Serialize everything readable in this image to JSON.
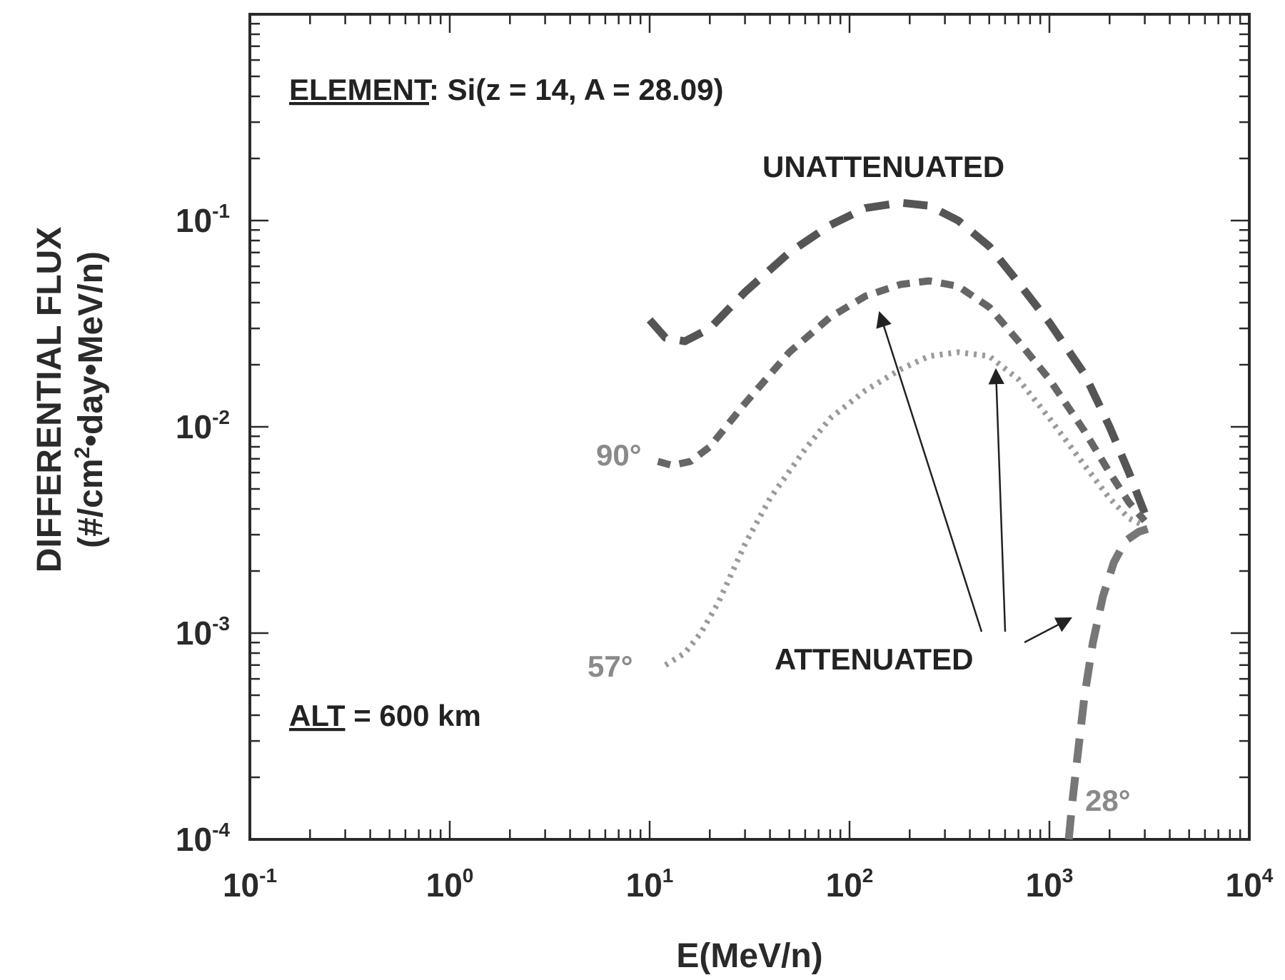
{
  "chart_data": {
    "type": "line",
    "x_scale": "log",
    "y_scale": "log",
    "xlim": [
      0.1,
      10000
    ],
    "ylim": [
      0.0001,
      1
    ],
    "x_ticks": [
      {
        "base": "10",
        "exp": "-1",
        "value": 0.1
      },
      {
        "base": "10",
        "exp": "0",
        "value": 1
      },
      {
        "base": "10",
        "exp": "1",
        "value": 10
      },
      {
        "base": "10",
        "exp": "2",
        "value": 100
      },
      {
        "base": "10",
        "exp": "3",
        "value": 1000
      },
      {
        "base": "10",
        "exp": "4",
        "value": 10000
      }
    ],
    "y_ticks": [
      {
        "base": "10",
        "exp": "-4",
        "value": 0.0001
      },
      {
        "base": "10",
        "exp": "-3",
        "value": 0.001
      },
      {
        "base": "10",
        "exp": "-2",
        "value": 0.01
      },
      {
        "base": "10",
        "exp": "-1",
        "value": 0.1
      }
    ],
    "xlabel": "E(MeV/n)",
    "ylabel_line1": "DIFFERENTIAL FLUX",
    "ylabel_line2_pre": "(#/cm",
    "ylabel_line2_sup": "2",
    "ylabel_line2_post": "•day•MeV/n)",
    "grid": false,
    "annotations": {
      "element_label": "ELEMENT",
      "element_rest": ": Si(z = 14, A = 28.09)",
      "alt_label": "ALT",
      "alt_rest": " = 600 km",
      "unattenuated": "UNATTENUATED",
      "attenuated": "ATTENUATED"
    },
    "series": [
      {
        "label": "UNATTENUATED",
        "color": "#555555",
        "style": "dashed-long",
        "x": [
          10,
          12,
          15,
          20,
          30,
          50,
          80,
          120,
          180,
          250,
          350,
          500,
          700,
          1000,
          1500,
          2000,
          2500,
          3000
        ],
        "y": [
          0.033,
          0.027,
          0.026,
          0.03,
          0.045,
          0.07,
          0.095,
          0.115,
          0.122,
          0.118,
          0.1,
          0.075,
          0.05,
          0.032,
          0.018,
          0.01,
          0.006,
          0.0038
        ]
      },
      {
        "label": "90°",
        "color": "#666666",
        "style": "dashed-short",
        "x": [
          11,
          13,
          16,
          20,
          30,
          50,
          80,
          120,
          180,
          250,
          350,
          500,
          700,
          1000,
          1500,
          2000,
          2500,
          3000
        ],
        "y": [
          0.0068,
          0.0065,
          0.0068,
          0.008,
          0.013,
          0.023,
          0.034,
          0.043,
          0.049,
          0.051,
          0.048,
          0.038,
          0.026,
          0.017,
          0.0095,
          0.006,
          0.0043,
          0.0035
        ]
      },
      {
        "label": "57°",
        "color": "#9a9a9a",
        "style": "dotted",
        "x": [
          12,
          15,
          18,
          22,
          30,
          40,
          60,
          80,
          120,
          180,
          250,
          350,
          500,
          700,
          1000,
          1500,
          2000,
          2500,
          3000
        ],
        "y": [
          0.0007,
          0.0008,
          0.001,
          0.0014,
          0.0027,
          0.0045,
          0.0078,
          0.011,
          0.015,
          0.019,
          0.022,
          0.023,
          0.022,
          0.017,
          0.011,
          0.0065,
          0.0045,
          0.0036,
          0.0033
        ]
      },
      {
        "label": "28°",
        "color": "#777777",
        "style": "dashed-long",
        "x": [
          1250,
          1300,
          1380,
          1500,
          1650,
          1850,
          2100,
          2400,
          2800,
          3100
        ],
        "y": [
          0.0001,
          0.00015,
          0.00025,
          0.0005,
          0.0009,
          0.0015,
          0.0022,
          0.0028,
          0.0031,
          0.0032
        ]
      }
    ]
  }
}
